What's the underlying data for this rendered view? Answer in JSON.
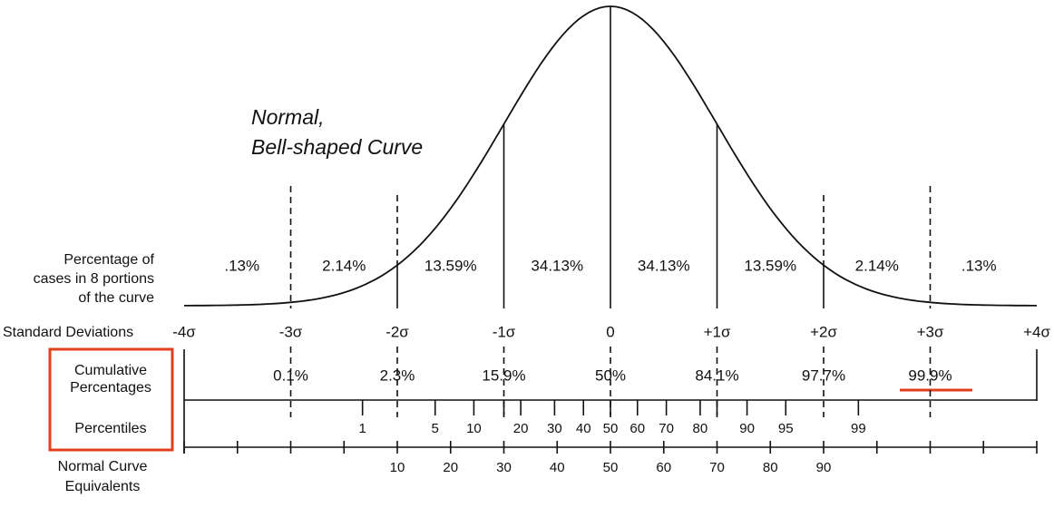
{
  "title": [
    "Normal,",
    "Bell-shaped Curve"
  ],
  "row_labels": {
    "portions": [
      "Percentage of",
      "cases in 8 portions",
      "of the curve"
    ],
    "standard_deviations": "Standard Deviations",
    "cumulative": [
      "Cumulative",
      "Percentages"
    ],
    "percentiles": "Percentiles",
    "nce": [
      "Normal Curve",
      "Equivalents"
    ]
  },
  "portions": [
    ".13%",
    "2.14%",
    "13.59%",
    "34.13%",
    "34.13%",
    "13.59%",
    "2.14%",
    ".13%"
  ],
  "sigmas": [
    "-4σ",
    "-3σ",
    "-2σ",
    "-1σ",
    "0",
    "+1σ",
    "+2σ",
    "+3σ",
    "+4σ"
  ],
  "cumulative_percentages": [
    "0.1%",
    "2.3%",
    "15.9%",
    "50%",
    "84.1%",
    "97.7%",
    "99.9%"
  ],
  "percentiles": [
    1,
    5,
    10,
    20,
    30,
    40,
    50,
    60,
    70,
    80,
    90,
    95,
    99
  ],
  "normal_curve_equivalents": [
    10,
    20,
    30,
    40,
    50,
    60,
    70,
    80,
    90
  ]
}
